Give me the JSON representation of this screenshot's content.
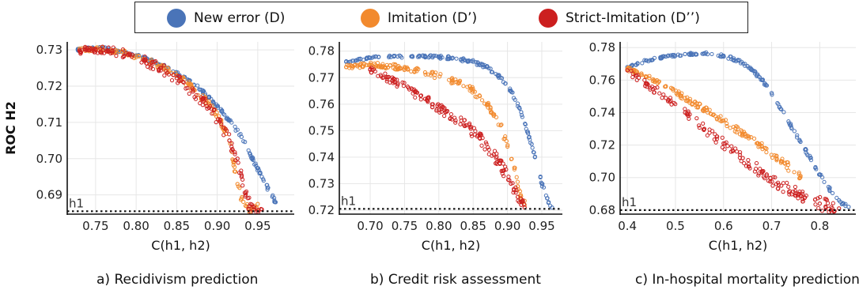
{
  "legend": {
    "items": [
      {
        "label": "New error (D)",
        "color": "#4a74b8"
      },
      {
        "label": "Imitation (D’)",
        "color": "#f28a2e"
      },
      {
        "label": "Strict-Imitation (D’’)",
        "color": "#cc1f1f"
      }
    ]
  },
  "captions": {
    "a": "a) Recidivism prediction",
    "b": "b) Credit risk assessment",
    "c": "c) In-hospital mortality prediction"
  },
  "chart_data": [
    {
      "type": "scatter",
      "panel": "a",
      "xlabel": "C(h1, h2)",
      "ylabel": "ROC H2",
      "xlim": [
        0.715,
        0.995
      ],
      "ylim": [
        0.6847,
        0.7322
      ],
      "xticks": [
        0.75,
        0.8,
        0.85,
        0.9,
        0.95
      ],
      "xtick_labels": [
        "0.75",
        "0.80",
        "0.85",
        "0.90",
        "0.95"
      ],
      "yticks": [
        0.69,
        0.7,
        0.71,
        0.72,
        0.73
      ],
      "ytick_labels": [
        "0.69",
        "0.70",
        "0.71",
        "0.72",
        "0.73"
      ],
      "reference_line": {
        "label": "h1",
        "y": 0.6855
      },
      "grid": true,
      "series": [
        {
          "name": "New error (D)",
          "color": "#4a74b8",
          "x": [
            0.728,
            0.74,
            0.76,
            0.78,
            0.8,
            0.82,
            0.84,
            0.86,
            0.88,
            0.9,
            0.915,
            0.93,
            0.94,
            0.948,
            0.955,
            0.962,
            0.968,
            0.972
          ],
          "y": [
            0.73,
            0.7305,
            0.7305,
            0.7295,
            0.7285,
            0.727,
            0.725,
            0.7225,
            0.719,
            0.7145,
            0.7105,
            0.706,
            0.7015,
            0.698,
            0.695,
            0.692,
            0.6895,
            0.688
          ]
        },
        {
          "name": "Imitation (D’)",
          "color": "#f28a2e",
          "x": [
            0.73,
            0.75,
            0.77,
            0.79,
            0.81,
            0.83,
            0.85,
            0.87,
            0.89,
            0.905,
            0.915,
            0.92,
            0.925,
            0.93,
            0.935,
            0.94,
            0.945,
            0.95
          ],
          "y": [
            0.73,
            0.7303,
            0.73,
            0.729,
            0.7275,
            0.7255,
            0.723,
            0.7195,
            0.715,
            0.71,
            0.705,
            0.699,
            0.693,
            0.689,
            0.687,
            0.686,
            0.6865,
            0.6875
          ]
        },
        {
          "name": "Strict-Imitation (D’’)",
          "color": "#cc1f1f",
          "x": [
            0.73,
            0.75,
            0.77,
            0.79,
            0.81,
            0.83,
            0.85,
            0.87,
            0.89,
            0.905,
            0.915,
            0.925,
            0.93,
            0.935,
            0.94,
            0.945,
            0.95,
            0.955
          ],
          "y": [
            0.7298,
            0.7302,
            0.7297,
            0.7287,
            0.727,
            0.725,
            0.7222,
            0.7185,
            0.714,
            0.7095,
            0.705,
            0.7,
            0.695,
            0.69,
            0.687,
            0.686,
            0.6858,
            0.686
          ]
        }
      ]
    },
    {
      "type": "scatter",
      "panel": "b",
      "xlabel": "C(h1, h2)",
      "ylabel": "",
      "xlim": [
        0.655,
        0.98
      ],
      "ylim": [
        0.7185,
        0.7835
      ],
      "xticks": [
        0.7,
        0.75,
        0.8,
        0.85,
        0.9,
        0.95
      ],
      "xtick_labels": [
        "0.70",
        "0.75",
        "0.80",
        "0.85",
        "0.90",
        "0.95"
      ],
      "yticks": [
        0.72,
        0.73,
        0.74,
        0.75,
        0.76,
        0.77,
        0.78
      ],
      "ytick_labels": [
        "0.72",
        "0.73",
        "0.74",
        "0.75",
        "0.76",
        "0.77",
        "0.78"
      ],
      "reference_line": {
        "label": "h1",
        "y": 0.7205
      },
      "grid": true,
      "series": [
        {
          "name": "New error (D)",
          "color": "#4a74b8",
          "x": [
            0.665,
            0.7,
            0.74,
            0.78,
            0.82,
            0.85,
            0.87,
            0.89,
            0.905,
            0.92,
            0.93,
            0.94,
            0.95,
            0.96,
            0.965
          ],
          "y": [
            0.776,
            0.7775,
            0.778,
            0.778,
            0.7775,
            0.776,
            0.774,
            0.77,
            0.765,
            0.757,
            0.749,
            0.74,
            0.73,
            0.723,
            0.721
          ]
        },
        {
          "name": "Imitation (D’)",
          "color": "#f28a2e",
          "x": [
            0.665,
            0.7,
            0.74,
            0.78,
            0.82,
            0.85,
            0.87,
            0.89,
            0.9,
            0.91,
            0.915,
            0.92,
            0.925
          ],
          "y": [
            0.774,
            0.775,
            0.774,
            0.772,
            0.769,
            0.765,
            0.76,
            0.752,
            0.744,
            0.736,
            0.729,
            0.724,
            0.722
          ]
        },
        {
          "name": "Strict-Imitation (D’’)",
          "color": "#cc1f1f",
          "x": [
            0.7,
            0.74,
            0.78,
            0.81,
            0.84,
            0.86,
            0.88,
            0.895,
            0.905,
            0.915,
            0.92,
            0.925
          ],
          "y": [
            0.773,
            0.768,
            0.762,
            0.757,
            0.752,
            0.747,
            0.741,
            0.735,
            0.73,
            0.725,
            0.722,
            0.721
          ]
        }
      ]
    },
    {
      "type": "scatter",
      "panel": "c",
      "xlabel": "C(h1, h2)",
      "ylabel": "",
      "xlim": [
        0.385,
        0.875
      ],
      "ylim": [
        0.6775,
        0.7835
      ],
      "xticks": [
        0.4,
        0.5,
        0.6,
        0.7,
        0.8
      ],
      "xtick_labels": [
        "0.4",
        "0.5",
        "0.6",
        "0.7",
        "0.8"
      ],
      "yticks": [
        0.68,
        0.7,
        0.72,
        0.74,
        0.76,
        0.78
      ],
      "ytick_labels": [
        "0.68",
        "0.70",
        "0.72",
        "0.74",
        "0.76",
        "0.78"
      ],
      "reference_line": {
        "label": "h1",
        "y": 0.68
      },
      "grid": true,
      "series": [
        {
          "name": "New error (D)",
          "color": "#4a74b8",
          "x": [
            0.4,
            0.44,
            0.48,
            0.52,
            0.56,
            0.6,
            0.63,
            0.66,
            0.68,
            0.7,
            0.72,
            0.74,
            0.76,
            0.78,
            0.8,
            0.82,
            0.84,
            0.86
          ],
          "y": [
            0.768,
            0.772,
            0.7745,
            0.776,
            0.7765,
            0.775,
            0.772,
            0.766,
            0.76,
            0.752,
            0.742,
            0.732,
            0.722,
            0.712,
            0.702,
            0.693,
            0.686,
            0.682
          ]
        },
        {
          "name": "Imitation (D’)",
          "color": "#f28a2e",
          "x": [
            0.4,
            0.44,
            0.48,
            0.52,
            0.56,
            0.6,
            0.64,
            0.68,
            0.72,
            0.76
          ],
          "y": [
            0.767,
            0.762,
            0.756,
            0.749,
            0.742,
            0.735,
            0.727,
            0.719,
            0.71,
            0.701
          ]
        },
        {
          "name": "Strict-Imitation (D’’)",
          "color": "#cc1f1f",
          "x": [
            0.4,
            0.44,
            0.48,
            0.52,
            0.56,
            0.6,
            0.64,
            0.68,
            0.72,
            0.76,
            0.8,
            0.84
          ],
          "y": [
            0.766,
            0.758,
            0.749,
            0.74,
            0.73,
            0.721,
            0.712,
            0.703,
            0.695,
            0.689,
            0.684,
            0.681
          ]
        }
      ]
    }
  ]
}
